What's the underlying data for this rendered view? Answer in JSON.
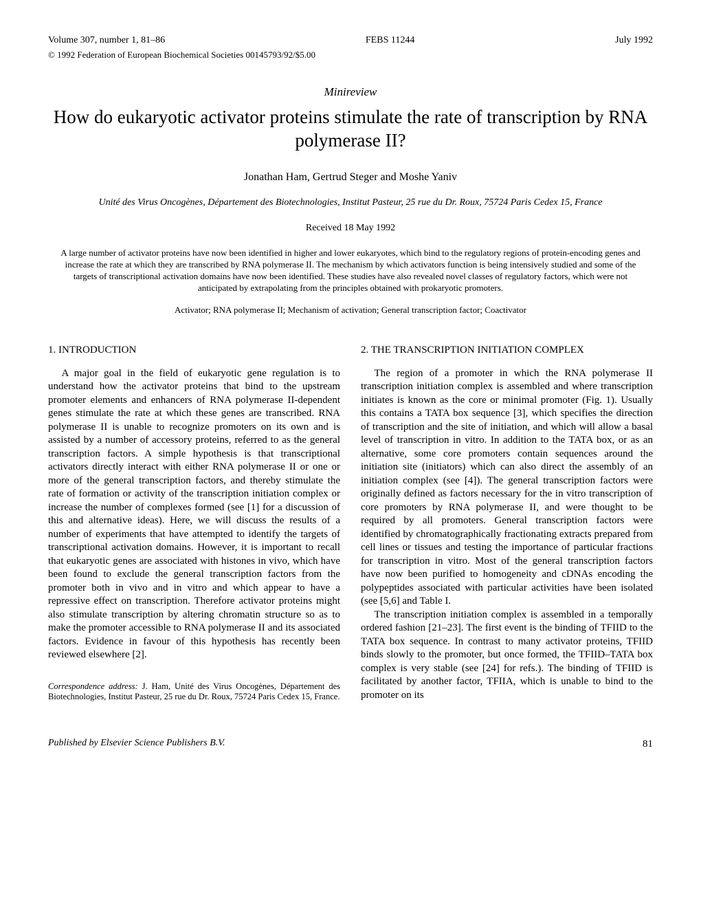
{
  "header": {
    "volume": "Volume 307, number 1, 81–86",
    "journal_id": "FEBS 11244",
    "date": "July 1992",
    "copyright": "© 1992 Federation of European Biochemical Societies 00145793/92/$5.00"
  },
  "article_type": "Minireview",
  "title": "How do eukaryotic activator proteins stimulate the rate of transcription by RNA polymerase II?",
  "authors": "Jonathan Ham, Gertrud Steger and Moshe Yaniv",
  "affiliation": "Unité des Virus Oncogènes, Département des Biotechnologies, Institut Pasteur, 25 rue du Dr. Roux, 75724 Paris Cedex 15, France",
  "received": "Received 18 May 1992",
  "abstract": "A large number of activator proteins have now been identified in higher and lower eukaryotes, which bind to the regulatory regions of protein-encoding genes and increase the rate at which they are transcribed by RNA polymerase II. The mechanism by which activators function is being intensively studied and some of the targets of transcriptional activation domains have now been identified. These studies have also revealed novel classes of regulatory factors, which were not anticipated by extrapolating from the principles obtained with prokaryotic promoters.",
  "keywords": "Activator; RNA polymerase II; Mechanism of activation; General transcription factor; Coactivator",
  "sections": {
    "intro_heading": "1. INTRODUCTION",
    "intro_body": "A major goal in the field of eukaryotic gene regulation is to understand how the activator proteins that bind to the upstream promoter elements and enhancers of RNA polymerase II-dependent genes stimulate the rate at which these genes are transcribed. RNA polymerase II is unable to recognize promoters on its own and is assisted by a number of accessory proteins, referred to as the general transcription factors. A simple hypothesis is that transcriptional activators directly interact with either RNA polymerase II or one or more of the general transcription factors, and thereby stimulate the rate of formation or activity of the transcription initiation complex or increase the number of complexes formed (see [1] for a discussion of this and alternative ideas). Here, we will discuss the results of a number of experiments that have attempted to identify the targets of transcriptional activation domains. However, it is important to recall that eukaryotic genes are associated with histones in vivo, which have been found to exclude the general transcription factors from the promoter both in vivo and in vitro and which appear to have a repressive effect on transcription. Therefore activator proteins might also stimulate transcription by altering chromatin structure so as to make the promoter accessible to RNA polymerase II and its associated factors. Evidence in favour of this hypothesis has recently been reviewed elsewhere [2].",
    "complex_heading": "2. THE TRANSCRIPTION INITIATION COMPLEX",
    "complex_body_p1": "The region of a promoter in which the RNA polymerase II transcription initiation complex is assembled and where transcription initiates is known as the core or minimal promoter (Fig. 1). Usually this contains a TATA box sequence [3], which specifies the direction of transcription and the site of initiation, and which will allow a basal level of transcription in vitro. In addition to the TATA box, or as an alternative, some core promoters contain sequences around the initiation site (initiators) which can also direct the assembly of an initiation complex (see [4]). The general transcription factors were originally defined as factors necessary for the in vitro transcription of core promoters by RNA polymerase II, and were thought to be required by all promoters. General transcription factors were identified by chromatographically fractionating extracts prepared from cell lines or tissues and testing the importance of particular fractions for transcription in vitro. Most of the general transcription factors have now been purified to homogeneity and cDNAs encoding the polypeptides associated with particular activities have been isolated (see [5,6] and Table I.",
    "complex_body_p2": "The transcription initiation complex is assembled in a temporally ordered fashion [21–23]. The first event is the binding of TFIID to the TATA box sequence. In contrast to many activator proteins, TFIID binds slowly to the promoter, but once formed, the TFIID–TATA box complex is very stable (see [24] for refs.). The binding of TFIID is facilitated by another factor, TFIIA, which is unable to bind to the promoter on its"
  },
  "correspondence": {
    "label": "Correspondence address:",
    "text": " J. Ham, Unité des Virus Oncogènes, Département des Biotechnologies, Institut Pasteur, 25 rue du Dr. Roux, 75724 Paris Cedex 15, France."
  },
  "footer": {
    "publisher": "Published by Elsevier Science Publishers B.V.",
    "page": "81"
  }
}
